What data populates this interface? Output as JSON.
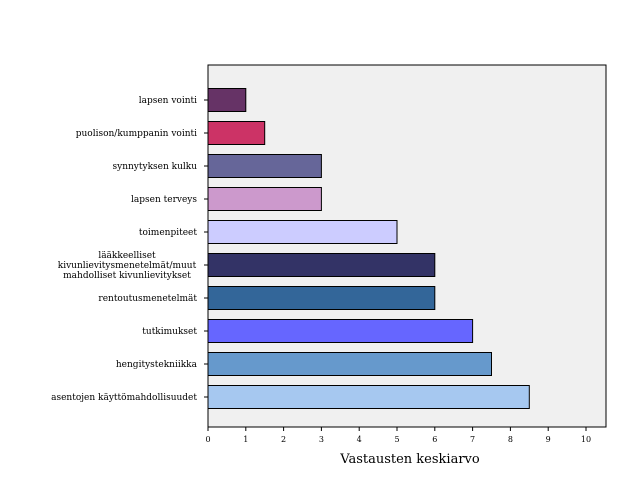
{
  "chart_data": {
    "type": "bar",
    "orientation": "horizontal",
    "categories": [
      "lapsen vointi",
      "puolison/kumppanin vointi",
      "synnytyksen kulku",
      "lapsen terveys",
      "toimenpiteet",
      "lääkkeelliset kivunlievitysmenetelmät/muut mahdolliset kivunlievitykset",
      "rentoutusmenetelmät",
      "tutkimukset",
      "hengitystekniikka",
      "asentojen käyttömahdollisuudet"
    ],
    "category_lines": [
      [
        "lapsen vointi"
      ],
      [
        "puolison/kumppanin vointi"
      ],
      [
        "synnytyksen kulku"
      ],
      [
        "lapsen terveys"
      ],
      [
        "toimenpiteet"
      ],
      [
        "lääkkeelliset",
        "kivunlievitysmenetelmät/muut",
        "mahdolliset kivunlievitykset"
      ],
      [
        "rentoutusmenetelmät"
      ],
      [
        "tutkimukset"
      ],
      [
        "hengitystekniikka"
      ],
      [
        "asentojen käyttömahdollisuudet"
      ]
    ],
    "values": [
      1,
      1.5,
      3,
      3,
      5,
      6,
      6,
      7,
      7.5,
      8.5
    ],
    "colors": [
      "#663366",
      "#CC3366",
      "#666699",
      "#CC99CC",
      "#CCCCFF",
      "#333366",
      "#336699",
      "#6666FF",
      "#6699CC",
      "#A6C8F0"
    ],
    "xlabel": "Vastausten keskiarvo",
    "xlim": [
      0,
      10
    ],
    "xticks": [
      "0",
      "1",
      "2",
      "3",
      "4",
      "5",
      "6",
      "7",
      "8",
      "9",
      "10"
    ],
    "plot_background": "#F0F0F0",
    "grid": false
  }
}
